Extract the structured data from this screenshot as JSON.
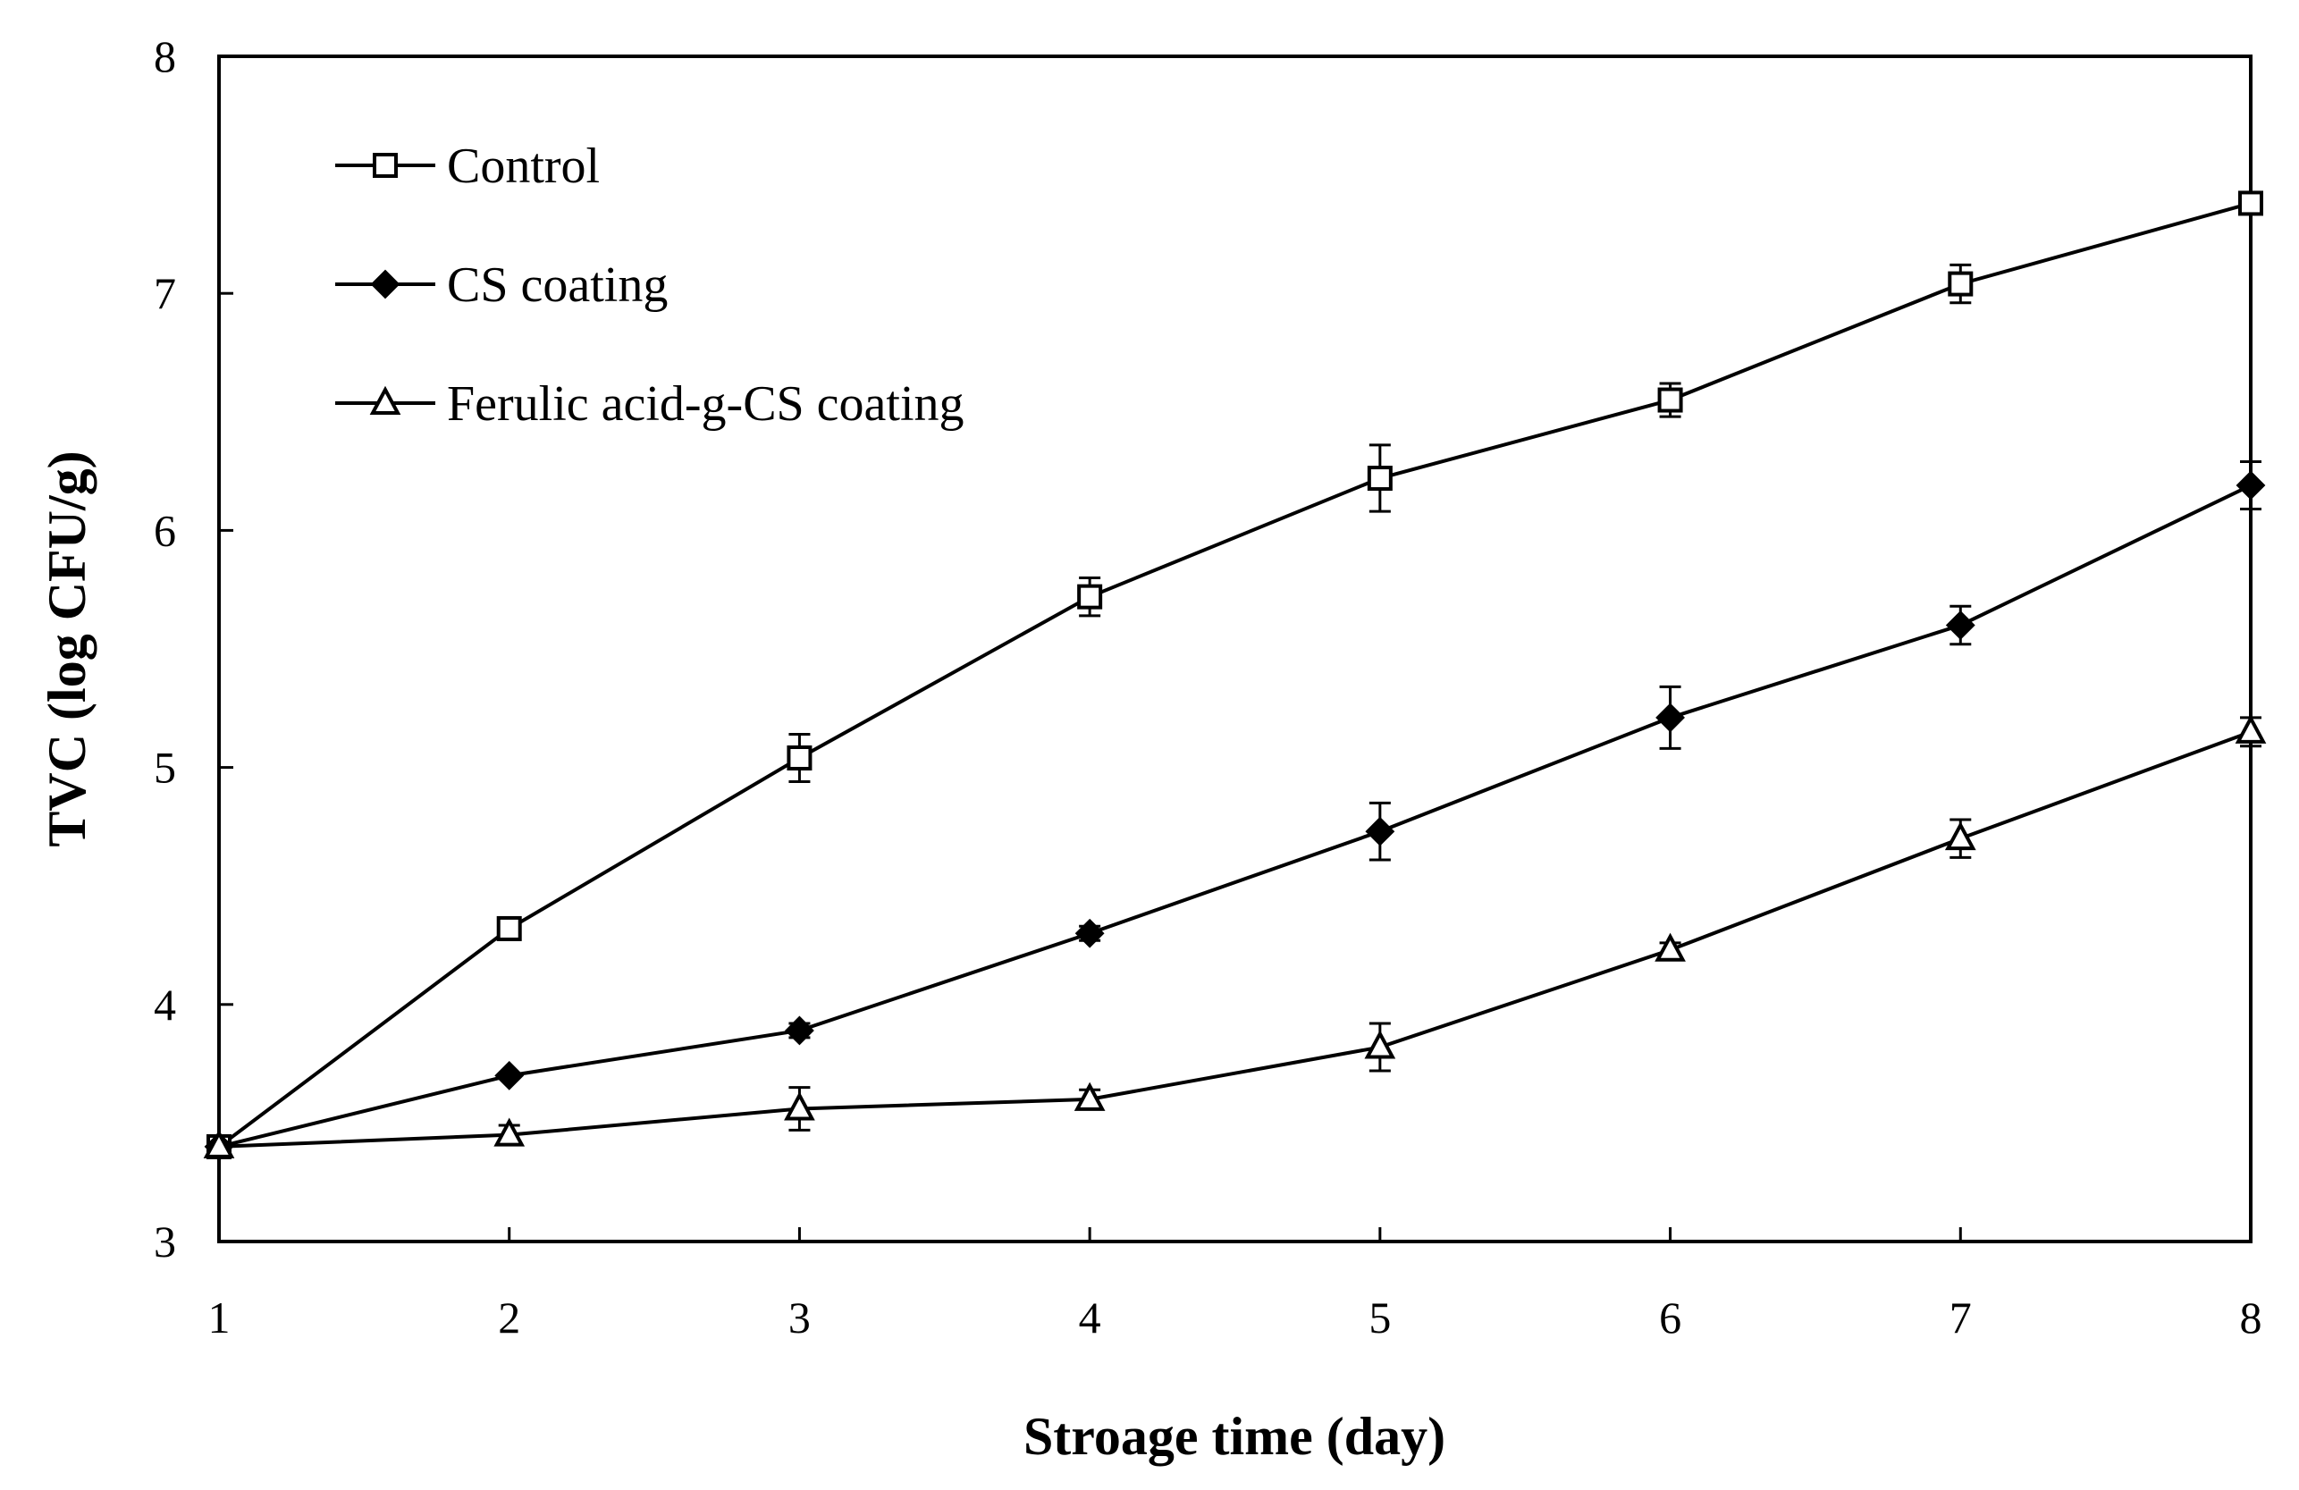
{
  "chart_data": {
    "type": "line",
    "title": "",
    "xlabel": "Stroage time (day)",
    "ylabel": "TVC (log CFU/g)",
    "x": [
      1,
      2,
      3,
      4,
      5,
      6,
      7,
      8
    ],
    "xlim": [
      1,
      8
    ],
    "ylim": [
      3,
      8
    ],
    "xticks": [
      "1",
      "2",
      "3",
      "4",
      "5",
      "6",
      "7",
      "8"
    ],
    "yticks": [
      "3",
      "4",
      "5",
      "6",
      "7",
      "8"
    ],
    "grid": false,
    "legend_position": "top-left",
    "series": [
      {
        "name": "Control",
        "marker": "open-square",
        "values": [
          3.4,
          4.32,
          5.04,
          5.72,
          6.22,
          6.55,
          7.04,
          7.38
        ],
        "errors": [
          0.02,
          0.03,
          0.1,
          0.08,
          0.14,
          0.07,
          0.08,
          0.04
        ]
      },
      {
        "name": "CS coating",
        "marker": "filled-diamond",
        "values": [
          3.4,
          3.7,
          3.89,
          4.3,
          4.73,
          5.21,
          5.6,
          6.19
        ],
        "errors": [
          0.02,
          0.02,
          0.03,
          0.03,
          0.12,
          0.13,
          0.08,
          0.1
        ]
      },
      {
        "name": "Ferulic acid-g-CS coating",
        "marker": "open-triangle",
        "values": [
          3.4,
          3.45,
          3.56,
          3.6,
          3.82,
          4.23,
          4.7,
          5.15
        ],
        "errors": [
          0.02,
          0.04,
          0.09,
          0.04,
          0.1,
          0.03,
          0.08,
          0.06
        ]
      }
    ]
  }
}
